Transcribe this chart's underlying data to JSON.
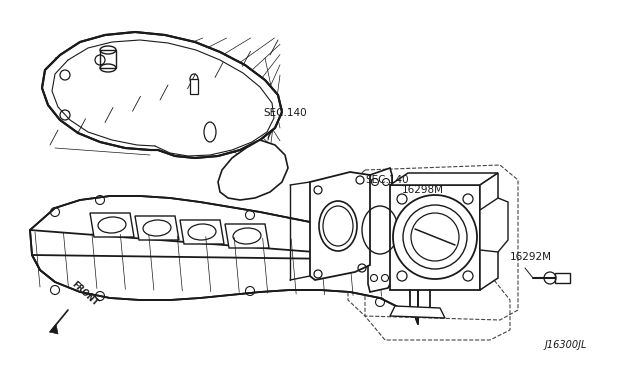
{
  "bg_color": "#ffffff",
  "line_color": "#1a1a1a",
  "dash_color": "#444444",
  "label_sec140_1": "SEC.140",
  "label_sec140_2": "SEC.140",
  "label_16298m": "16298M",
  "label_16292m": "16292M",
  "label_j16300jl": "J16300JL",
  "label_front": "FRONT",
  "figsize": [
    6.4,
    3.72
  ],
  "dpi": 100
}
